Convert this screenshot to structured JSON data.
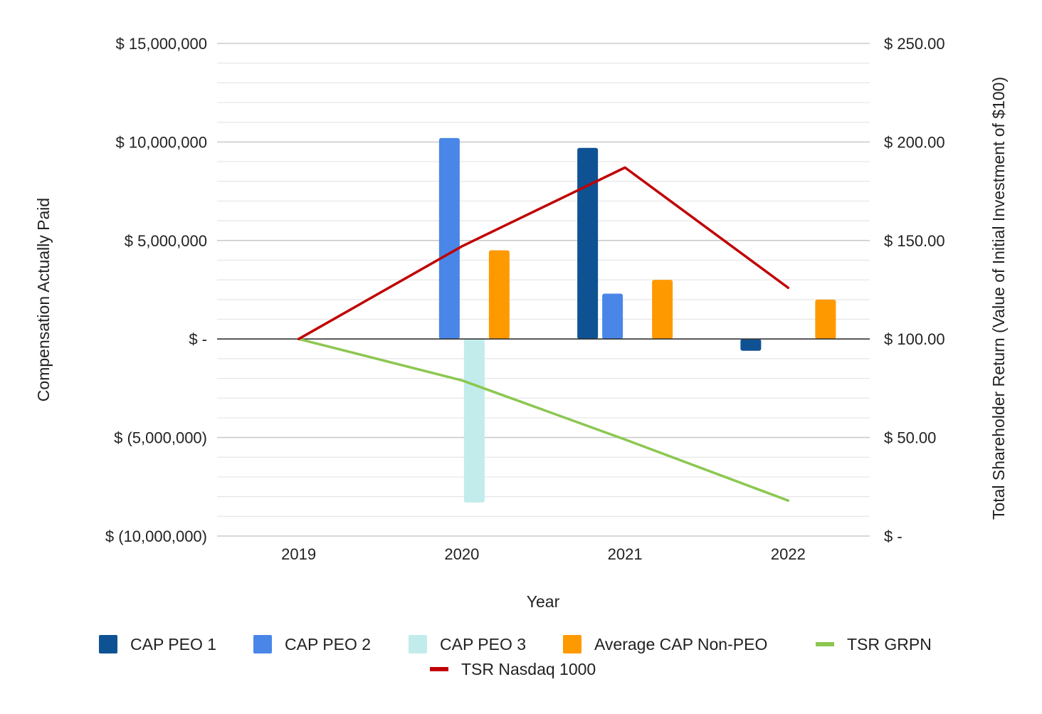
{
  "chart_data": {
    "type": "bar",
    "categories": [
      "2019",
      "2020",
      "2021",
      "2022"
    ],
    "xlabel": "Year",
    "ylabel": "Compensation Actually Paid",
    "y2label": "Total Shareholder Return (Value of Initial Investment of $100)",
    "ylim": [
      -10000000,
      15000000
    ],
    "y2lim": [
      0,
      250
    ],
    "y_ticks": [
      {
        "value": 15000000,
        "label": "$ 15,000,000"
      },
      {
        "value": 10000000,
        "label": "$ 10,000,000"
      },
      {
        "value": 5000000,
        "label": "$ 5,000,000"
      },
      {
        "value": 0,
        "label": "$ -"
      },
      {
        "value": -5000000,
        "label": "$ (5,000,000)"
      },
      {
        "value": -10000000,
        "label": "$ (10,000,000)"
      }
    ],
    "y2_ticks": [
      {
        "value": 250,
        "label": "$ 250.00"
      },
      {
        "value": 200,
        "label": "$ 200.00"
      },
      {
        "value": 150,
        "label": "$ 150.00"
      },
      {
        "value": 100,
        "label": "$ 100.00"
      },
      {
        "value": 50,
        "label": "$ 50.00"
      },
      {
        "value": 0,
        "label": "$ -"
      }
    ],
    "bar_series": [
      {
        "name": "CAP PEO 1",
        "color": "#0f5294",
        "values": [
          null,
          null,
          9700000,
          -600000
        ]
      },
      {
        "name": "CAP PEO 2",
        "color": "#4a86e8",
        "values": [
          null,
          10200000,
          2300000,
          null
        ]
      },
      {
        "name": "CAP PEO 3",
        "color": "#c2ecec",
        "values": [
          null,
          -8300000,
          null,
          null
        ]
      },
      {
        "name": "Average CAP Non-PEO",
        "color": "#ff9900",
        "values": [
          null,
          4500000,
          3000000,
          2000000
        ]
      }
    ],
    "line_series": [
      {
        "name": "TSR GRPN",
        "color": "#8cc751",
        "axis": "right",
        "values": [
          100,
          79,
          49,
          18
        ]
      },
      {
        "name": "TSR Nasdaq 1000",
        "color": "#c00000",
        "axis": "right",
        "values": [
          100,
          147,
          187,
          126
        ]
      }
    ],
    "legend_position": "bottom"
  }
}
